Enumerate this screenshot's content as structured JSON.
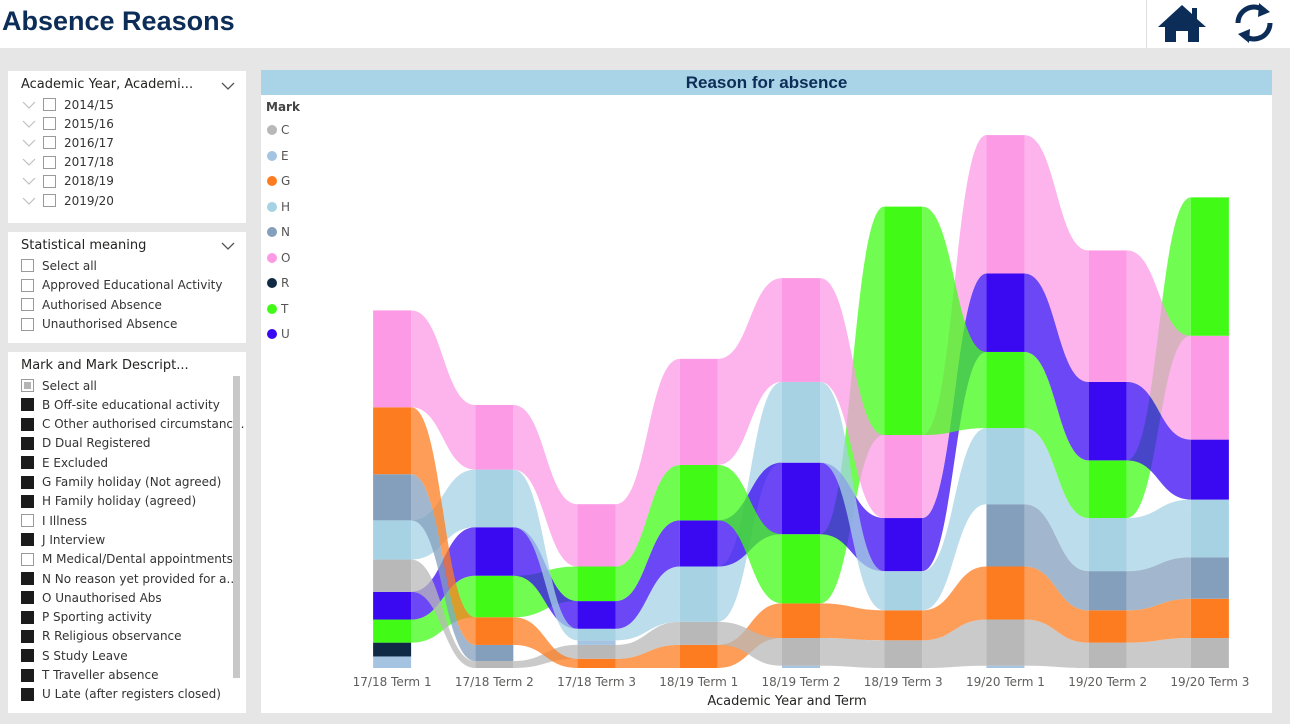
{
  "page": {
    "title": "Absence Reasons"
  },
  "topbar": {
    "home_icon": "home-icon",
    "refresh_icon": "refresh-icon"
  },
  "slicer_year": {
    "title": "Academic Year, Academi...",
    "items": [
      "2014/15",
      "2015/16",
      "2016/17",
      "2017/18",
      "2018/19",
      "2019/20"
    ]
  },
  "slicer_meaning": {
    "title": "Statistical meaning",
    "items": [
      "Select all",
      "Approved Educational Activity",
      "Authorised Absence",
      "Unauthorised Absence"
    ]
  },
  "slicer_mark": {
    "title": "Mark and Mark Descript...",
    "items": [
      {
        "label": "Select all",
        "state": "partial"
      },
      {
        "label": "B Off-site educational activity",
        "state": "on"
      },
      {
        "label": "C Other authorised circumstanc...",
        "state": "on"
      },
      {
        "label": "D Dual Registered",
        "state": "on"
      },
      {
        "label": "E Excluded",
        "state": "on"
      },
      {
        "label": "G Family holiday (Not agreed)",
        "state": "on"
      },
      {
        "label": "H Family holiday (agreed)",
        "state": "on"
      },
      {
        "label": "I Illness",
        "state": "off"
      },
      {
        "label": "J Interview",
        "state": "on"
      },
      {
        "label": "M Medical/Dental appointments",
        "state": "off"
      },
      {
        "label": "N No reason yet provided for a...",
        "state": "on"
      },
      {
        "label": "O Unauthorised Abs",
        "state": "on"
      },
      {
        "label": "P Sporting activity",
        "state": "on"
      },
      {
        "label": "R Religious observance",
        "state": "on"
      },
      {
        "label": "S Study Leave",
        "state": "on"
      },
      {
        "label": "T Traveller absence",
        "state": "on"
      },
      {
        "label": "U Late (after registers closed)",
        "state": "on"
      }
    ]
  },
  "chart_data": {
    "type": "ribbon",
    "title": "Reason for absence",
    "xlabel": "Academic Year and Term",
    "legend_title": "Mark",
    "categories": [
      "17/18 Term 1",
      "17/18 Term 2",
      "17/18 Term 3",
      "18/19 Term 1",
      "18/19 Term 2",
      "18/19 Term 3",
      "19/20 Term 1",
      "19/20 Term 2",
      "19/20 Term 3"
    ],
    "series": [
      {
        "name": "C",
        "color": "#b8b8b8"
      },
      {
        "name": "E",
        "color": "#a4c4e2"
      },
      {
        "name": "G",
        "color": "#fd7c1f"
      },
      {
        "name": "H",
        "color": "#a6d2e4"
      },
      {
        "name": "N",
        "color": "#839fbc"
      },
      {
        "name": "O",
        "color": "#fc9ae6"
      },
      {
        "name": "R",
        "color": "#102a46"
      },
      {
        "name": "T",
        "color": "#41fb17"
      },
      {
        "name": "U",
        "color": "#3a09f2"
      }
    ],
    "stacks": [
      [
        [
          "E",
          5
        ],
        [
          "R",
          6
        ],
        [
          "T",
          10
        ],
        [
          "U",
          12
        ],
        [
          "C",
          14
        ],
        [
          "H",
          17
        ],
        [
          "N",
          20
        ],
        [
          "G",
          29
        ],
        [
          "O",
          42
        ]
      ],
      [
        [
          "C",
          3
        ],
        [
          "N",
          7
        ],
        [
          "G",
          12
        ],
        [
          "T",
          18
        ],
        [
          "U",
          21
        ],
        [
          "H",
          25
        ],
        [
          "O",
          28
        ]
      ],
      [
        [
          "G",
          4
        ],
        [
          "C",
          6
        ],
        [
          "E",
          2
        ],
        [
          "H",
          5
        ],
        [
          "U",
          12
        ],
        [
          "T",
          15
        ],
        [
          "O",
          27
        ]
      ],
      [
        [
          "G",
          10
        ],
        [
          "C",
          10
        ],
        [
          "H",
          24
        ],
        [
          "U",
          20
        ],
        [
          "T",
          24
        ],
        [
          "O",
          46
        ]
      ],
      [
        [
          "E",
          1
        ],
        [
          "C",
          12
        ],
        [
          "G",
          15
        ],
        [
          "T",
          30
        ],
        [
          "U",
          31
        ],
        [
          "H",
          35
        ],
        [
          "O",
          45
        ]
      ],
      [
        [
          "C",
          12
        ],
        [
          "G",
          13
        ],
        [
          "H",
          17
        ],
        [
          "U",
          23
        ],
        [
          "O",
          36
        ],
        [
          "T",
          99
        ]
      ],
      [
        [
          "E",
          1
        ],
        [
          "C",
          20
        ],
        [
          "G",
          23
        ],
        [
          "N",
          27
        ],
        [
          "H",
          33
        ],
        [
          "T",
          33
        ],
        [
          "U",
          34
        ],
        [
          "O",
          60
        ]
      ],
      [
        [
          "C",
          11
        ],
        [
          "G",
          14
        ],
        [
          "N",
          17
        ],
        [
          "H",
          23
        ],
        [
          "T",
          25
        ],
        [
          "U",
          34
        ],
        [
          "O",
          57
        ]
      ],
      [
        [
          "C",
          13
        ],
        [
          "G",
          17
        ],
        [
          "N",
          18
        ],
        [
          "H",
          25
        ],
        [
          "U",
          26
        ],
        [
          "O",
          45
        ],
        [
          "T",
          60
        ]
      ]
    ],
    "ymin": 0,
    "ymax": 228
  }
}
